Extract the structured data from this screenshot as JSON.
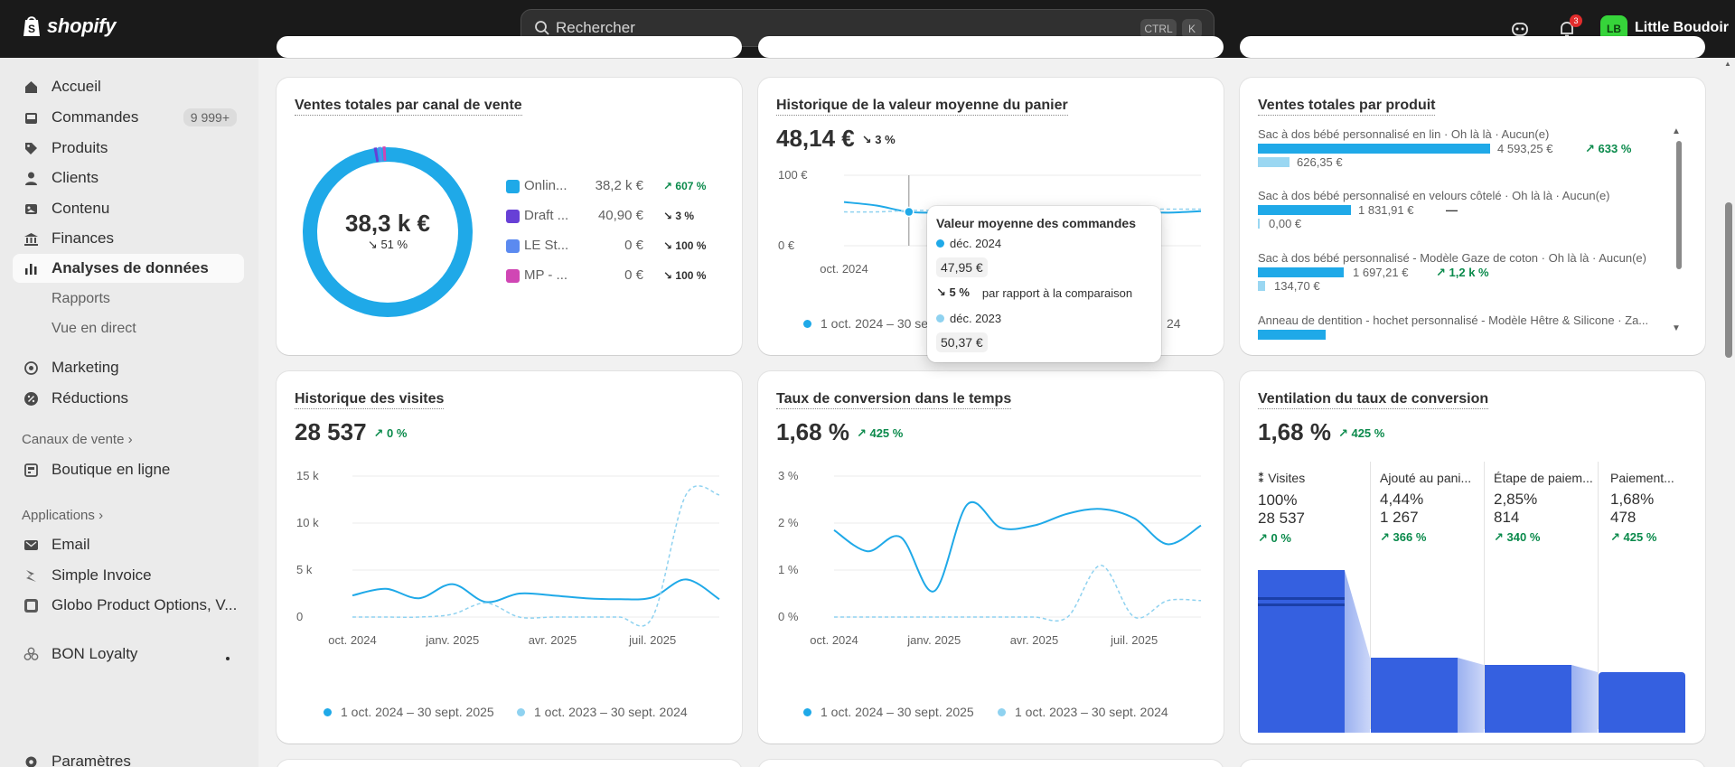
{
  "topbar": {
    "brand": "shopify",
    "search_placeholder": "Rechercher",
    "kbd_ctrl": "CTRL",
    "kbd_k": "K",
    "notifications_count": "3",
    "avatar_initials": "LB",
    "store_name": "Little Boudoir"
  },
  "sidebar": {
    "items": [
      {
        "label": "Accueil",
        "icon": "home-icon"
      },
      {
        "label": "Commandes",
        "icon": "inbox-icon",
        "count": "9 999+"
      },
      {
        "label": "Produits",
        "icon": "tag-icon"
      },
      {
        "label": "Clients",
        "icon": "person-icon"
      },
      {
        "label": "Contenu",
        "icon": "image-icon"
      },
      {
        "label": "Finances",
        "icon": "bank-icon"
      },
      {
        "label": "Analyses de données",
        "icon": "chart-bars-icon"
      }
    ],
    "sub_items": [
      "Rapports",
      "Vue en direct"
    ],
    "marketing": "Marketing",
    "discounts": "Réductions",
    "sales_channels_header": "Canaux de vente",
    "online_store": "Boutique en ligne",
    "apps_header": "Applications",
    "apps": [
      "Email",
      "Simple Invoice",
      "Globo Product Options, V..."
    ],
    "bon_loyalty": "BON Loyalty",
    "settings": "Paramètres"
  },
  "cards": {
    "channel": {
      "title": "Ventes totales par canal de vente",
      "center_value": "38,3 k €",
      "center_delta": "51 %",
      "channels": [
        {
          "name": "Onlin...",
          "value": "38,2 k €",
          "delta": "607 %",
          "dir": "up",
          "color": "#1fa9e8"
        },
        {
          "name": "Draft ...",
          "value": "40,90 €",
          "delta": "3 %",
          "dir": "down",
          "color": "#6740d6"
        },
        {
          "name": "LE St...",
          "value": "0 €",
          "delta": "100 %",
          "dir": "down",
          "color": "#5b8af0"
        },
        {
          "name": "MP - ...",
          "value": "0 €",
          "delta": "100 %",
          "dir": "down",
          "color": "#d046b4"
        }
      ]
    },
    "aov": {
      "title": "Historique de la valeur moyenne du panier",
      "value": "48,14 €",
      "delta": "3 %",
      "legend_current": "1 oct. 2024 – 30 sept.",
      "legend_previous_tail": "24"
    },
    "products": {
      "title": "Ventes totales par produit",
      "items": [
        {
          "name": "Sac à dos bébé personnalisé en lin · Oh là là · Aucun(e)",
          "current": "4 593,25 €",
          "previous": "626,35 €",
          "delta": "633 %"
        },
        {
          "name": "Sac à dos bébé personnalisé en velours côtelé · Oh là là · Aucun(e)",
          "current": "1 831,91 €",
          "previous": "0,00 €",
          "delta": "—"
        },
        {
          "name": "Sac à dos bébé personnalisé - Modèle Gaze de coton · Oh là là · Aucun(e)",
          "current": "1 697,21 €",
          "previous": "134,70 €",
          "delta": "1,2 k %"
        },
        {
          "name": "Anneau de dentition - hochet personnalisé - Modèle Hêtre & Silicone · Za...",
          "current": "",
          "previous": "",
          "delta": ""
        }
      ]
    },
    "visits": {
      "title": "Historique des visites",
      "value": "28 537",
      "delta": "0 %",
      "legend_current": "1 oct. 2024 – 30 sept. 2025",
      "legend_previous": "1 oct. 2023 – 30 sept. 2024"
    },
    "conversion": {
      "title": "Taux de conversion dans le temps",
      "value": "1,68 %",
      "delta": "425 %",
      "legend_current": "1 oct. 2024 – 30 sept. 2025",
      "legend_previous": "1 oct. 2023 – 30 sept. 2024"
    },
    "funnel": {
      "title": "Ventilation du taux de conversion",
      "value": "1,68 %",
      "delta": "425 %",
      "steps": [
        {
          "name": "Visites",
          "pct": "100%",
          "count": "28 537",
          "delta": "0 %"
        },
        {
          "name": "Ajouté au pani...",
          "pct": "4,44%",
          "count": "1 267",
          "delta": "366 %"
        },
        {
          "name": "Étape de paiem...",
          "pct": "2,85%",
          "count": "814",
          "delta": "340 %"
        },
        {
          "name": "Paiement...",
          "pct": "1,68%",
          "count": "478",
          "delta": "425 %"
        }
      ]
    }
  },
  "tooltip": {
    "title": "Valeur moyenne des commandes",
    "current_label": "déc. 2024",
    "current_value": "47,95 €",
    "delta": "5 %",
    "comparison_text": "par rapport à la comparaison",
    "previous_label": "déc. 2023",
    "previous_value": "50,37 €"
  },
  "chart_data": [
    {
      "type": "pie",
      "title": "Ventes totales par canal de vente",
      "categories": [
        "Onlin...",
        "Draft ...",
        "LE St...",
        "MP - ..."
      ],
      "values": [
        38200,
        40.9,
        0,
        0
      ]
    },
    {
      "type": "line",
      "title": "Historique de la valeur moyenne du panier",
      "x": [
        "oct. 2024",
        "nov. 2024",
        "déc. 2024",
        "janv. 2025",
        "févr. 2025",
        "mars 2025",
        "avr. 2025",
        "mai 2025",
        "juin 2025",
        "juil. 2025",
        "août 2025",
        "sept. 2025"
      ],
      "xticks": [
        "oct. 2024",
        "janv."
      ],
      "yticks": [
        "100 €",
        "0 €"
      ],
      "ylim": [
        0,
        100
      ],
      "series": [
        {
          "name": "1 oct. 2024 – 30 sept.",
          "values": [
            62,
            57,
            48,
            47,
            48,
            49,
            47,
            48,
            49,
            48,
            47,
            49
          ]
        },
        {
          "name": "24",
          "values": [
            48,
            48,
            50,
            50,
            50,
            50,
            51,
            51,
            52,
            52,
            52,
            52
          ]
        }
      ]
    },
    {
      "type": "line",
      "title": "Historique des visites",
      "x": [
        "oct. 2024",
        "nov. 2024",
        "déc. 2024",
        "janv. 2025",
        "févr. 2025",
        "mars 2025",
        "avr. 2025",
        "mai 2025",
        "juin 2025",
        "juil. 2025",
        "août 2025",
        "sept. 2025"
      ],
      "xticks": [
        "oct. 2024",
        "janv. 2025",
        "avr. 2025",
        "juil. 2025"
      ],
      "yticks": [
        "15 k",
        "10 k",
        "5 k",
        "0"
      ],
      "ylim": [
        0,
        15000
      ],
      "series": [
        {
          "name": "1 oct. 2024 – 30 sept. 2025",
          "values": [
            2300,
            3000,
            2000,
            3500,
            1600,
            2500,
            2300,
            2000,
            1900,
            2100,
            4000,
            1900
          ]
        },
        {
          "name": "1 oct. 2023 – 30 sept. 2024",
          "values": [
            0,
            0,
            0,
            300,
            1500,
            0,
            0,
            0,
            0,
            0,
            13000,
            13000
          ]
        }
      ]
    },
    {
      "type": "line",
      "title": "Taux de conversion dans le temps",
      "x": [
        "oct. 2024",
        "nov. 2024",
        "déc. 2024",
        "janv. 2025",
        "févr. 2025",
        "mars 2025",
        "avr. 2025",
        "mai 2025",
        "juin 2025",
        "juil. 2025",
        "août 2025",
        "sept. 2025"
      ],
      "xticks": [
        "oct. 2024",
        "janv. 2025",
        "avr. 2025",
        "juil. 2025"
      ],
      "yticks": [
        "3 %",
        "2 %",
        "1 %",
        "0 %"
      ],
      "ylim": [
        0,
        3
      ],
      "series": [
        {
          "name": "1 oct. 2024 – 30 sept. 2025",
          "values": [
            1.85,
            1.4,
            1.7,
            0.55,
            2.4,
            1.9,
            1.95,
            2.2,
            2.3,
            2.1,
            1.55,
            1.95
          ]
        },
        {
          "name": "1 oct. 2023 – 30 sept. 2024",
          "values": [
            0,
            0,
            0,
            0,
            0,
            0,
            0,
            0,
            1.1,
            0,
            0.35,
            0.35
          ]
        }
      ]
    }
  ]
}
